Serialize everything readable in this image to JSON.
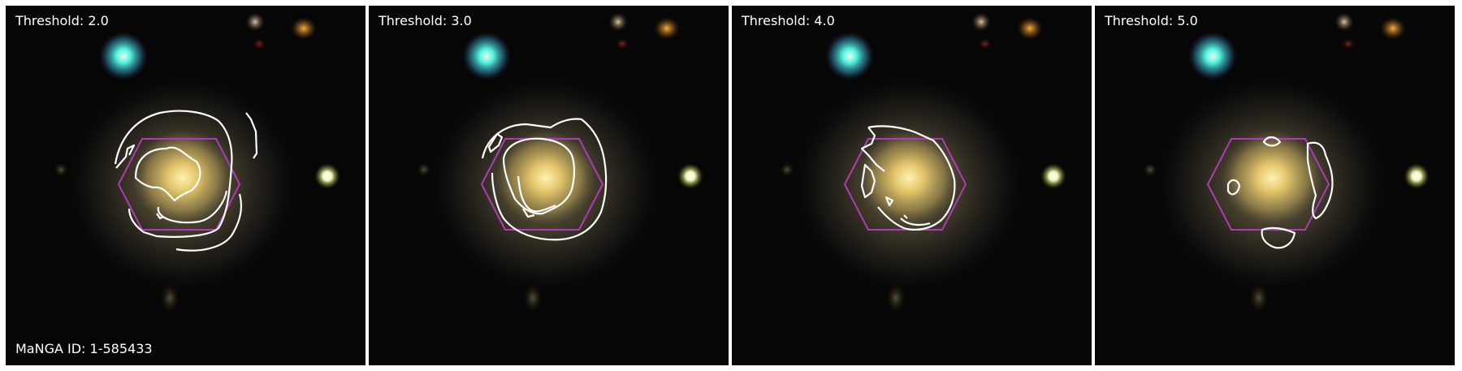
{
  "panels": [
    {
      "title": "Threshold: 2.0"
    },
    {
      "title": "Threshold: 3.0"
    },
    {
      "title": "Threshold: 4.0"
    },
    {
      "title": "Threshold: 5.0"
    }
  ],
  "manga_id": "MaNGA ID: 1-585433",
  "colors": {
    "contour": "#ffffff",
    "hexagon": "#b03ab8",
    "galaxy_core": "#f6d36a",
    "star_cyan": "#4ff2d8",
    "star_yellow": "#ffffd8"
  },
  "icons": [
    "galaxy-image",
    "star",
    "ifu-hexagon",
    "contour"
  ]
}
